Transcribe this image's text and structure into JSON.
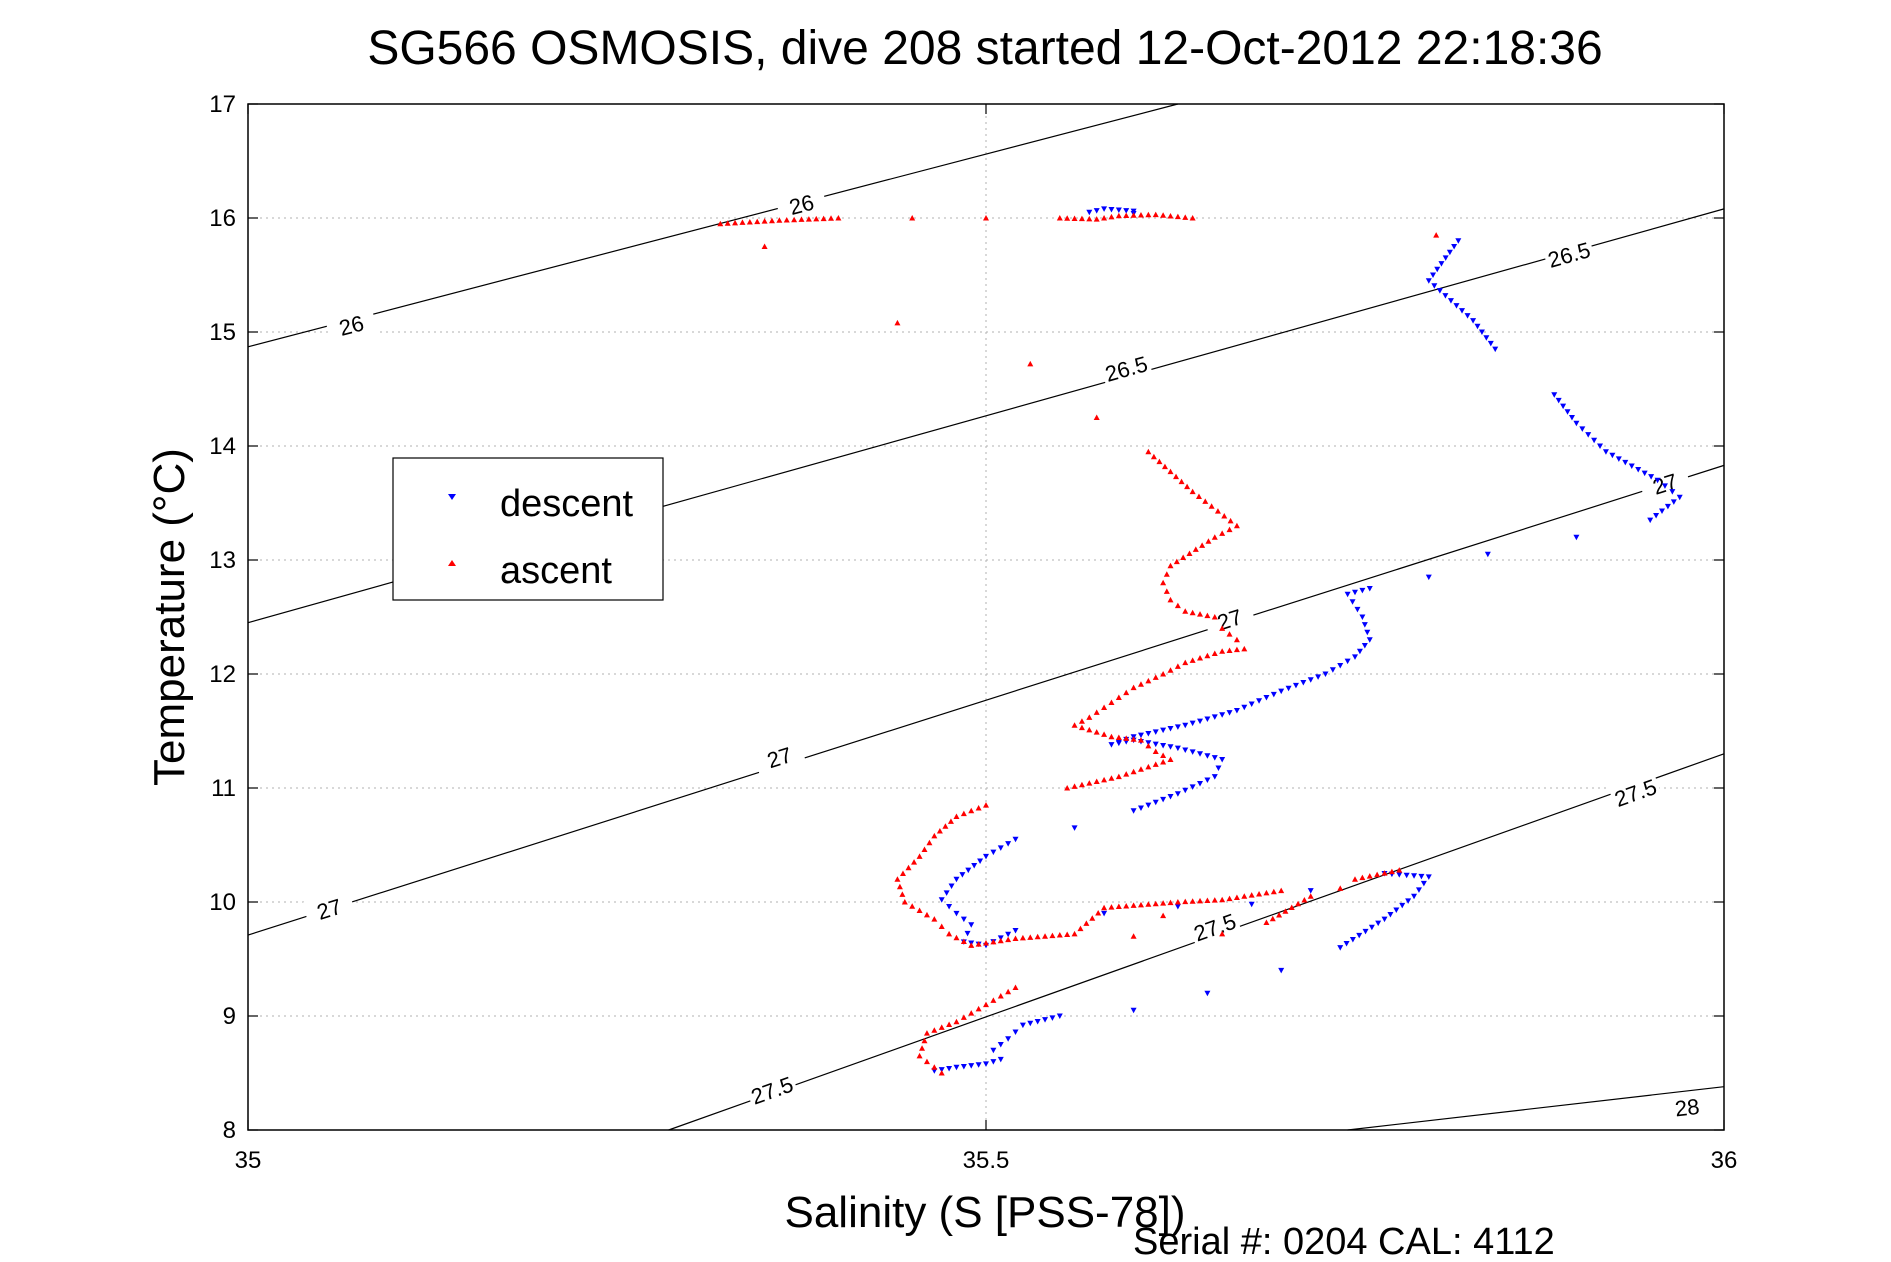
{
  "chart_data": {
    "type": "scatter",
    "title": "SG566 OSMOSIS, dive 208 started 12-Oct-2012 22:18:36",
    "xlabel": "Salinity (S [PSS-78])",
    "ylabel": "Temperature (°C)",
    "xlim": [
      35,
      36
    ],
    "ylim": [
      8,
      17
    ],
    "grid": true,
    "x_ticks": [
      35,
      35.5,
      36
    ],
    "x_tick_labels": [
      "35",
      "35.5",
      "36"
    ],
    "y_ticks": [
      8,
      9,
      10,
      11,
      12,
      13,
      14,
      15,
      16,
      17
    ],
    "y_tick_labels": [
      "8",
      "9",
      "10",
      "11",
      "12",
      "13",
      "14",
      "15",
      "16",
      "17"
    ],
    "legend": {
      "placement": "left",
      "entries": [
        {
          "label": "descent",
          "color": "#0000ff",
          "marker": "triangle-down"
        },
        {
          "label": "ascent",
          "color": "#ff0000",
          "marker": "triangle-up"
        }
      ]
    },
    "density_contours": [
      {
        "label": "26",
        "points": [
          [
            35,
            14.87
          ],
          [
            35.63,
            17.0
          ]
        ],
        "label_at": [
          [
            35.07,
            15.06
          ],
          [
            35.375,
            16.12
          ]
        ]
      },
      {
        "label": "26.5",
        "points": [
          [
            35,
            12.45
          ],
          [
            36,
            16.08
          ]
        ],
        "label_at": [
          [
            35.595,
            14.68
          ],
          [
            35.895,
            15.68
          ]
        ]
      },
      {
        "label": "27",
        "points": [
          [
            35,
            9.71
          ],
          [
            36,
            13.83
          ]
        ],
        "label_at": [
          [
            35.055,
            9.94
          ],
          [
            35.36,
            11.27
          ],
          [
            35.665,
            12.48
          ],
          [
            35.96,
            13.67
          ]
        ]
      },
      {
        "label": "27.5",
        "points": [
          [
            35.285,
            8.0
          ],
          [
            36,
            11.3
          ]
        ],
        "label_at": [
          [
            35.355,
            8.35
          ],
          [
            35.655,
            9.78
          ],
          [
            35.94,
            10.96
          ]
        ]
      },
      {
        "label": "28",
        "points": [
          [
            35.745,
            8.0
          ],
          [
            36,
            8.38
          ]
        ],
        "label_at": [
          [
            35.975,
            8.2
          ]
        ]
      }
    ],
    "series": [
      {
        "name": "descent",
        "color": "#0000ff",
        "points": [
          [
            35.465,
            8.52
          ],
          [
            35.48,
            8.55
          ],
          [
            35.5,
            8.58
          ],
          [
            35.51,
            8.62
          ],
          [
            35.505,
            8.7
          ],
          [
            35.515,
            8.8
          ],
          [
            35.525,
            8.92
          ],
          [
            35.55,
            9.0
          ],
          [
            35.6,
            9.05
          ],
          [
            35.65,
            9.2
          ],
          [
            35.7,
            9.4
          ],
          [
            35.74,
            9.6
          ],
          [
            35.77,
            9.85
          ],
          [
            35.79,
            10.05
          ],
          [
            35.8,
            10.22
          ],
          [
            35.77,
            10.25
          ],
          [
            35.72,
            10.1
          ],
          [
            35.68,
            9.98
          ],
          [
            35.63,
            9.96
          ],
          [
            35.58,
            9.9
          ],
          [
            35.52,
            9.75
          ],
          [
            35.5,
            9.62
          ],
          [
            35.485,
            9.65
          ],
          [
            35.49,
            9.8
          ],
          [
            35.48,
            9.9
          ],
          [
            35.47,
            10.02
          ],
          [
            35.48,
            10.2
          ],
          [
            35.5,
            10.4
          ],
          [
            35.52,
            10.55
          ],
          [
            35.56,
            10.65
          ],
          [
            35.6,
            10.8
          ],
          [
            35.63,
            10.95
          ],
          [
            35.655,
            11.1
          ],
          [
            35.66,
            11.25
          ],
          [
            35.63,
            11.35
          ],
          [
            35.6,
            11.42
          ],
          [
            35.585,
            11.38
          ],
          [
            35.6,
            11.45
          ],
          [
            35.635,
            11.55
          ],
          [
            35.67,
            11.68
          ],
          [
            35.7,
            11.85
          ],
          [
            35.73,
            12.0
          ],
          [
            35.75,
            12.15
          ],
          [
            35.76,
            12.3
          ],
          [
            35.755,
            12.5
          ],
          [
            35.745,
            12.7
          ],
          [
            35.76,
            12.75
          ],
          [
            35.8,
            12.85
          ],
          [
            35.84,
            13.05
          ],
          [
            35.9,
            13.2
          ],
          [
            35.95,
            13.35
          ],
          [
            35.97,
            13.55
          ],
          [
            35.955,
            13.7
          ],
          [
            35.92,
            13.95
          ],
          [
            35.9,
            14.2
          ],
          [
            35.885,
            14.45
          ],
          [
            35.845,
            14.85
          ],
          [
            35.83,
            15.1
          ],
          [
            35.8,
            15.45
          ],
          [
            35.82,
            15.8
          ],
          [
            35.57,
            16.05
          ],
          [
            35.58,
            16.08
          ],
          [
            35.6,
            16.06
          ],
          [
            35.6,
            16.04
          ]
        ]
      },
      {
        "name": "ascent",
        "color": "#ff0000",
        "points": [
          [
            35.32,
            15.95
          ],
          [
            35.36,
            15.98
          ],
          [
            35.4,
            16.0
          ],
          [
            35.45,
            16.0
          ],
          [
            35.5,
            16.0
          ],
          [
            35.55,
            16.0
          ],
          [
            35.575,
            15.99
          ],
          [
            35.59,
            16.02
          ],
          [
            35.615,
            16.03
          ],
          [
            35.64,
            16.0
          ],
          [
            35.805,
            15.85
          ],
          [
            35.35,
            15.75
          ],
          [
            35.44,
            15.08
          ],
          [
            35.53,
            14.72
          ],
          [
            35.575,
            14.25
          ],
          [
            35.61,
            13.95
          ],
          [
            35.64,
            13.6
          ],
          [
            35.67,
            13.3
          ],
          [
            35.655,
            13.2
          ],
          [
            35.625,
            12.95
          ],
          [
            35.62,
            12.8
          ],
          [
            35.625,
            12.65
          ],
          [
            35.635,
            12.55
          ],
          [
            35.655,
            12.5
          ],
          [
            35.66,
            12.4
          ],
          [
            35.67,
            12.3
          ],
          [
            35.675,
            12.22
          ],
          [
            35.66,
            12.2
          ],
          [
            35.635,
            12.1
          ],
          [
            35.62,
            12.0
          ],
          [
            35.6,
            11.88
          ],
          [
            35.585,
            11.75
          ],
          [
            35.57,
            11.62
          ],
          [
            35.56,
            11.55
          ],
          [
            35.585,
            11.45
          ],
          [
            35.605,
            11.42
          ],
          [
            35.615,
            11.32
          ],
          [
            35.625,
            11.25
          ],
          [
            35.59,
            11.1
          ],
          [
            35.555,
            11.0
          ],
          [
            35.5,
            10.85
          ],
          [
            35.48,
            10.75
          ],
          [
            35.465,
            10.58
          ],
          [
            35.455,
            10.4
          ],
          [
            35.44,
            10.2
          ],
          [
            35.445,
            10.0
          ],
          [
            35.465,
            9.85
          ],
          [
            35.475,
            9.72
          ],
          [
            35.49,
            9.62
          ],
          [
            35.52,
            9.68
          ],
          [
            35.56,
            9.72
          ],
          [
            35.58,
            9.95
          ],
          [
            35.6,
            9.97
          ],
          [
            35.63,
            10.0
          ],
          [
            35.66,
            10.02
          ],
          [
            35.7,
            10.1
          ],
          [
            35.75,
            10.2
          ],
          [
            35.78,
            10.28
          ],
          [
            35.6,
            9.7
          ],
          [
            35.52,
            9.25
          ],
          [
            35.5,
            9.1
          ],
          [
            35.48,
            8.95
          ],
          [
            35.46,
            8.85
          ],
          [
            35.455,
            8.65
          ],
          [
            35.47,
            8.5
          ],
          [
            35.62,
            9.88
          ],
          [
            35.66,
            9.72
          ],
          [
            35.72,
            10.05
          ],
          [
            35.69,
            9.82
          ],
          [
            35.74,
            10.12
          ]
        ]
      }
    ],
    "annotation": "Serial #: 0204  CAL: 4112"
  }
}
